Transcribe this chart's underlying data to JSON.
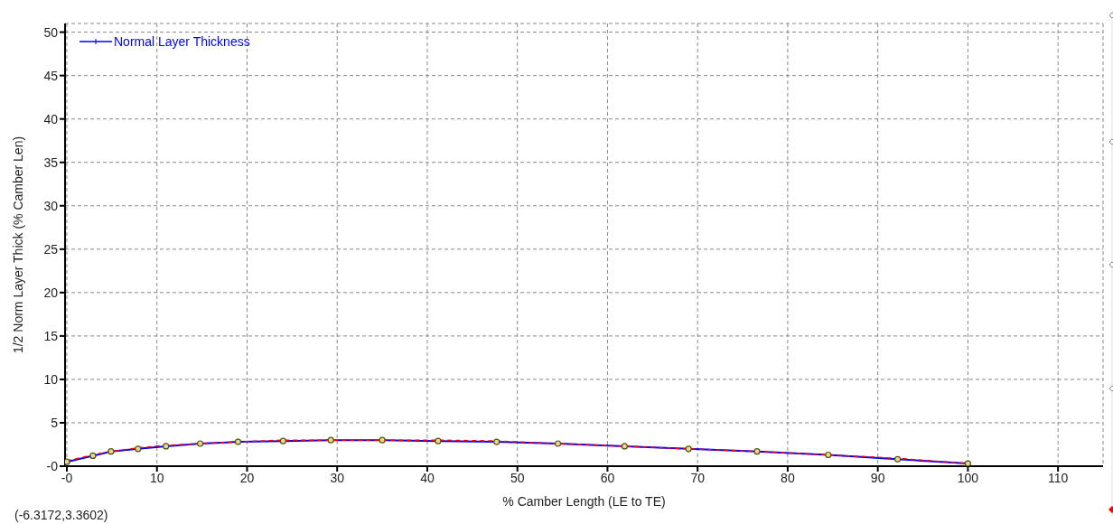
{
  "chart_data": {
    "type": "line",
    "xlabel": "% Camber Length (LE to TE)",
    "ylabel": "1/2 Norm Layer Thick (% Camber Len)",
    "annotations": [
      "(-6.3172,3.3602)"
    ],
    "xlim": [
      -0.2,
      115
    ],
    "xticks": [
      {
        "value": 0,
        "label": "-0"
      },
      10,
      20,
      30,
      40,
      50,
      60,
      70,
      80,
      90,
      100,
      110
    ],
    "ylim": [
      0,
      51
    ],
    "yticks": [
      {
        "value": 0,
        "label": "-0"
      },
      5,
      10,
      15,
      20,
      25,
      30,
      35,
      40,
      45,
      50
    ],
    "grid": true,
    "legend": "top left",
    "series": [
      {
        "name": "Normal Layer Thickness",
        "color": "#0000ff",
        "marker": "circle",
        "line_style": "solid",
        "x": [
          0,
          2.9,
          4.9,
          7.9,
          11,
          14.8,
          19,
          24,
          29.3,
          35,
          41.2,
          47.7,
          54.5,
          61.9,
          69,
          76.6,
          84.5,
          92.2,
          100
        ],
        "values": [
          0.5,
          1.2,
          1.7,
          2.0,
          2.3,
          2.6,
          2.8,
          2.9,
          3.0,
          3.0,
          2.9,
          2.8,
          2.6,
          2.3,
          2.0,
          1.7,
          1.3,
          0.8,
          0.3
        ]
      },
      {
        "color": "#ff0000",
        "marker": "none",
        "line_style": "dashed",
        "x": [
          0,
          2.9,
          4.9,
          7.9,
          11,
          14.8,
          19,
          24,
          29.3,
          35,
          41.2,
          47.7,
          54.5,
          61.9,
          69,
          76.6,
          84.5,
          92.2,
          100
        ],
        "values": [
          0.6,
          1.3,
          1.7,
          2.1,
          2.4,
          2.6,
          2.8,
          3.0,
          3.0,
          3.0,
          3.0,
          2.9,
          2.6,
          2.3,
          2.0,
          1.7,
          1.3,
          0.9,
          0.3
        ]
      }
    ]
  }
}
